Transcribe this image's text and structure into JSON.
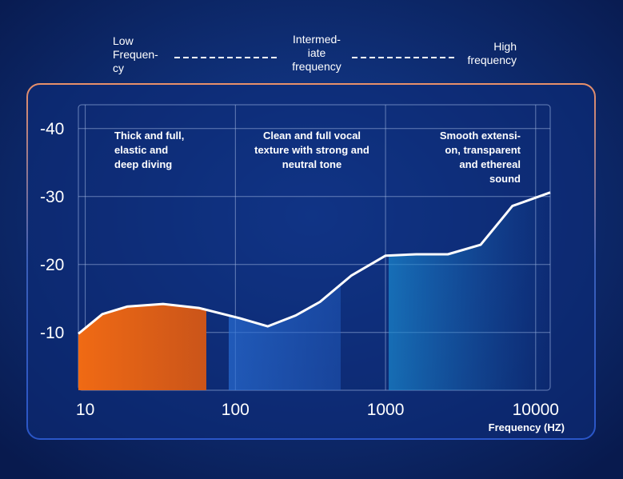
{
  "chart_data": {
    "type": "line",
    "bands": [
      {
        "label": [
          "Low",
          "Frequen-",
          "cy"
        ]
      },
      {
        "label": [
          "Intermed-",
          "iate",
          "frequency"
        ]
      },
      {
        "label": [
          "High",
          "frequency"
        ]
      }
    ],
    "annotations": [
      {
        "text": [
          "Thick and full,",
          "elastic and",
          "deep diving"
        ]
      },
      {
        "text": [
          "Clean and full vocal",
          "texture with strong and",
          "neutral tone"
        ]
      },
      {
        "text": [
          "Smooth extensi-",
          "on, transparent",
          "and ethereal",
          "sound"
        ]
      }
    ],
    "x_label": "Frequency (HZ)",
    "x": [
      9,
      13,
      19,
      33,
      57,
      107,
      164,
      252,
      366,
      594,
      1000,
      1600,
      2600,
      4300,
      7000,
      12500
    ],
    "series": [
      {
        "color": "#ffffff",
        "values": [
          -9.8,
          -12.7,
          -13.8,
          -14.2,
          -13.6,
          -12.1,
          -10.9,
          -12.5,
          -14.5,
          -18.4,
          -21.3,
          -21.5,
          -21.5,
          -22.9,
          -28.6,
          -30.6
        ]
      }
    ],
    "xlim": [
      9,
      12500
    ],
    "xticks": [
      10,
      100,
      1000,
      10000
    ],
    "xscale": "log",
    "ylim": [
      -1.5,
      -43.5
    ],
    "yticks": [
      -40,
      -30,
      -20,
      -10
    ],
    "grid": true
  }
}
